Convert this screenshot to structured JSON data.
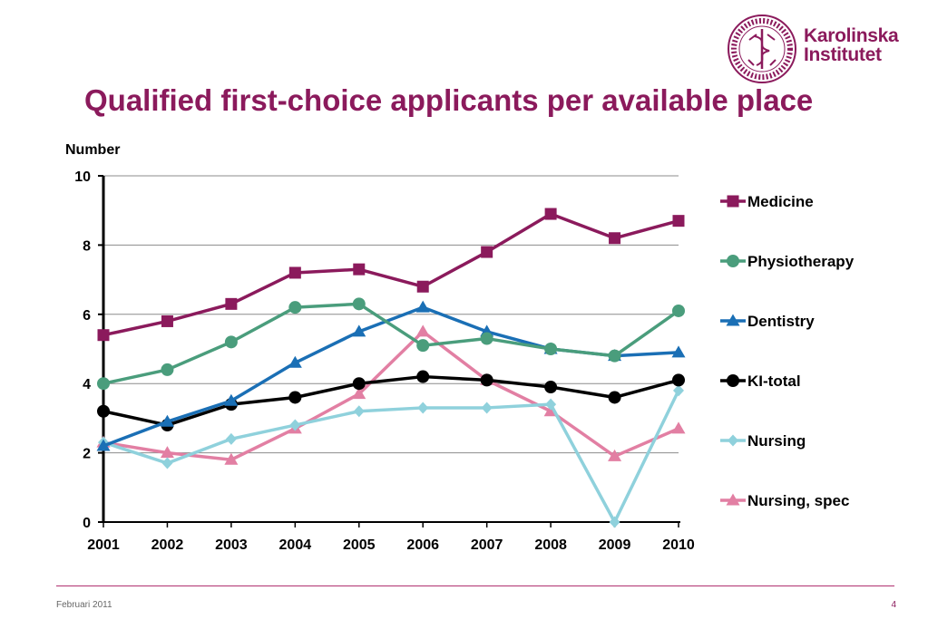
{
  "slide": {
    "title": "Qualified first-choice applicants per available place",
    "footer_date": "Februari 2011",
    "page_number": "4"
  },
  "logo": {
    "line1": "Karolinska",
    "line2": "Institutet",
    "seal_text": "KAROLINSKA INSTITUTET ANNO 1810"
  },
  "colors": {
    "brand": "#8b1a5c"
  },
  "chart_data": {
    "type": "line",
    "ylabel": "Number",
    "xlabel": "",
    "ylim": [
      0,
      10
    ],
    "yticks": [
      0,
      2,
      4,
      6,
      8,
      10
    ],
    "grid": true,
    "legend_position": "right",
    "categories": [
      "2001",
      "2002",
      "2003",
      "2004",
      "2005",
      "2006",
      "2007",
      "2008",
      "2009",
      "2010"
    ],
    "series": [
      {
        "name": "Medicine",
        "color": "#8b1a5c",
        "marker": "square",
        "values": [
          5.4,
          5.8,
          6.3,
          7.2,
          7.3,
          6.8,
          7.8,
          8.9,
          8.2,
          8.7
        ]
      },
      {
        "name": "Physiotherapy",
        "color": "#4a9d7c",
        "marker": "circle",
        "values": [
          4.0,
          4.4,
          5.2,
          6.2,
          6.3,
          5.1,
          5.3,
          5.0,
          4.8,
          6.1
        ]
      },
      {
        "name": "Dentistry",
        "color": "#1a6fb5",
        "marker": "triangle",
        "values": [
          2.2,
          2.9,
          3.5,
          4.6,
          5.5,
          6.2,
          5.5,
          5.0,
          4.8,
          4.9
        ]
      },
      {
        "name": "KI-total",
        "color": "#000000",
        "marker": "circle",
        "values": [
          3.2,
          2.8,
          3.4,
          3.6,
          4.0,
          4.2,
          4.1,
          3.9,
          3.6,
          4.1
        ]
      },
      {
        "name": "Nursing",
        "color": "#8fd1dc",
        "marker": "diamond",
        "values": [
          2.3,
          1.7,
          2.4,
          2.8,
          3.2,
          3.3,
          3.3,
          3.4,
          0.0,
          3.8
        ]
      },
      {
        "name": "Nursing, spec",
        "color": "#e27fa3",
        "marker": "triangle",
        "values": [
          2.3,
          2.0,
          1.8,
          2.7,
          3.7,
          5.5,
          4.1,
          3.2,
          1.9,
          2.7
        ]
      }
    ]
  }
}
